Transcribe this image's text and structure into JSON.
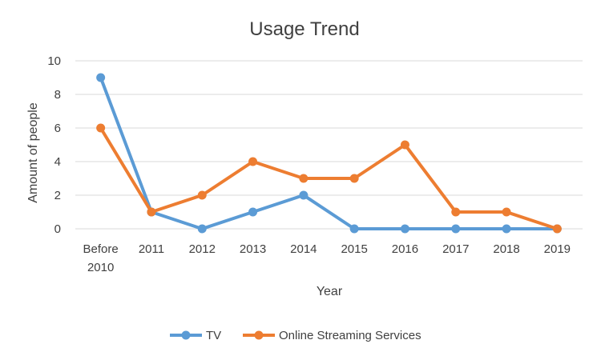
{
  "chart_data": {
    "type": "line",
    "title": "Usage Trend",
    "xlabel": "Year",
    "ylabel": "Amount of people",
    "categories": [
      [
        "Before",
        "2010"
      ],
      [
        "2011"
      ],
      [
        "2012"
      ],
      [
        "2013"
      ],
      [
        "2014"
      ],
      [
        "2015"
      ],
      [
        "2016"
      ],
      [
        "2017"
      ],
      [
        "2018"
      ],
      [
        "2019"
      ]
    ],
    "ylim": [
      0,
      10
    ],
    "yticks": [
      0,
      2,
      4,
      6,
      8,
      10
    ],
    "grid": true,
    "legend_position": "bottom",
    "series": [
      {
        "name": "TV",
        "color": "#5b9bd5",
        "values": [
          9,
          1,
          0,
          1,
          2,
          0,
          0,
          0,
          0,
          0
        ]
      },
      {
        "name": "Online Streaming Services",
        "color": "#ed7d31",
        "values": [
          6,
          1,
          2,
          4,
          3,
          3,
          5,
          1,
          1,
          0
        ]
      }
    ]
  }
}
